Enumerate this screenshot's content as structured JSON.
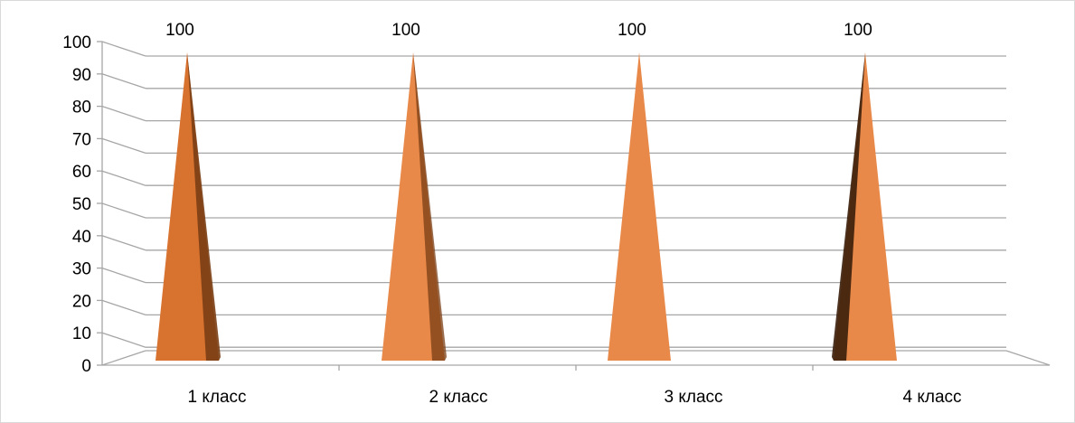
{
  "chart_data": {
    "type": "bar",
    "shape": "3d-cone",
    "categories": [
      "1 класс",
      "2 класс",
      "3 класс",
      "4 класс"
    ],
    "series": [
      {
        "values": [
          100,
          100,
          100,
          100
        ]
      }
    ],
    "data_labels": [
      "100",
      "100",
      "100",
      "100"
    ],
    "yticks": [
      "0",
      "10",
      "20",
      "30",
      "40",
      "50",
      "60",
      "70",
      "80",
      "90",
      "100"
    ],
    "ylim": [
      0,
      100
    ],
    "grid": true,
    "legend": "none",
    "colors": {
      "bar_main": "#e8894a",
      "bar_shadow": "#7a3e14",
      "grid": "#a6a6a6",
      "frame": "#d9d9d9"
    }
  }
}
